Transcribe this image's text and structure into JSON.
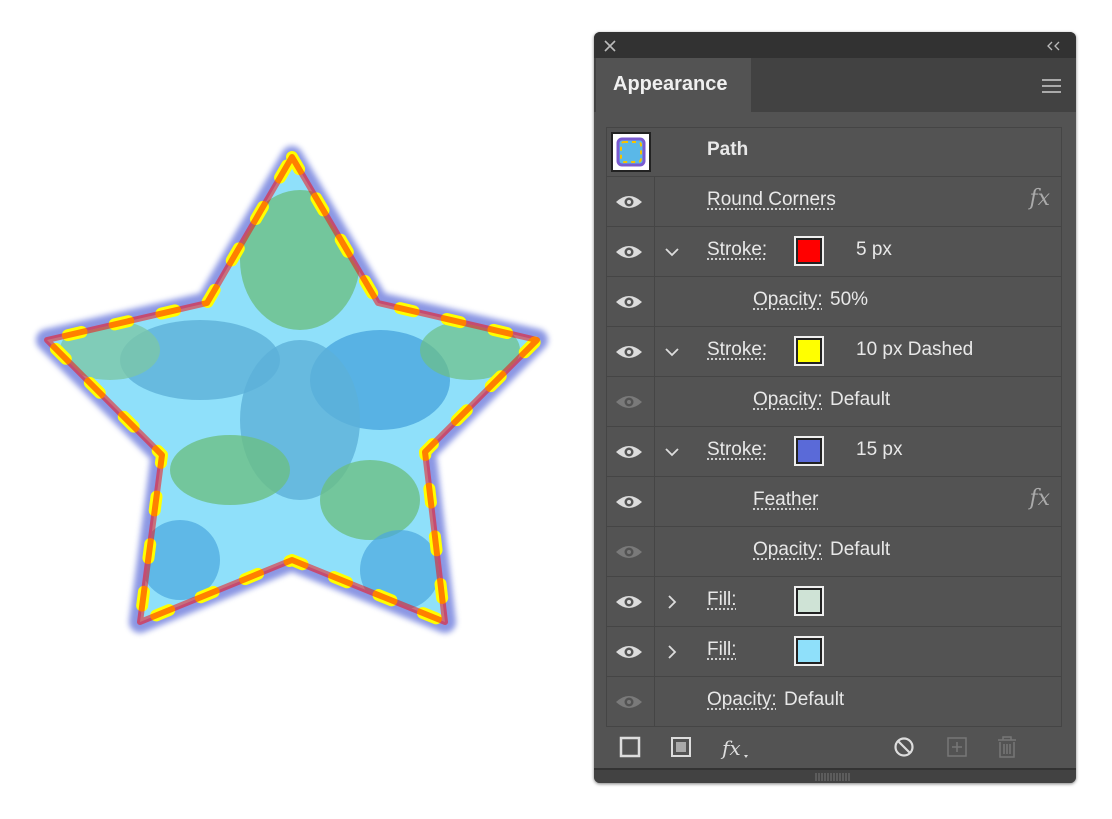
{
  "panel": {
    "title": "Appearance",
    "rows": [
      {
        "label": "Path",
        "thumbnail": true
      },
      {
        "label": "Round Corners",
        "eye": "on",
        "fx": "fx"
      },
      {
        "label": "Stroke:",
        "eye": "on",
        "chevron": "down",
        "swatch": "#ff0000",
        "value": "5 px"
      },
      {
        "label": "Opacity:",
        "eye": "on",
        "indent": true,
        "value": "50%"
      },
      {
        "label": "Stroke:",
        "eye": "on",
        "chevron": "down",
        "swatch": "#ffff00",
        "value": "10 px Dashed"
      },
      {
        "label": "Opacity:",
        "eye": "dim",
        "indent": true,
        "value": "Default"
      },
      {
        "label": "Stroke:",
        "eye": "on",
        "chevron": "down",
        "swatch": "#5a6ad8",
        "value": "15 px"
      },
      {
        "label": "Feather",
        "eye": "on",
        "indent": true,
        "fx": "fx"
      },
      {
        "label": "Opacity:",
        "eye": "dim",
        "indent": true,
        "value": "Default"
      },
      {
        "label": "Fill:",
        "eye": "on",
        "chevron": "right",
        "swatch": "#cfe3d6"
      },
      {
        "label": "Fill:",
        "eye": "on",
        "chevron": "right",
        "swatch": "#8fe0fa"
      },
      {
        "label": "Opacity:",
        "eye": "dim",
        "value": "Default"
      }
    ],
    "toolbar": {
      "fx": "fx"
    }
  }
}
